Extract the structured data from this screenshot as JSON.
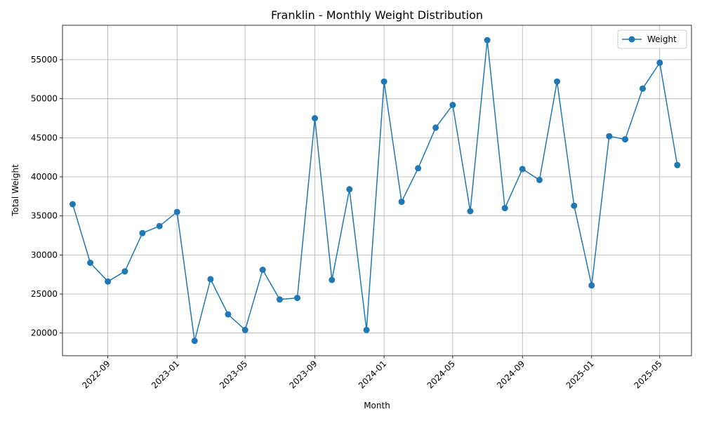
{
  "chart_data": {
    "type": "line",
    "title": "Franklin - Monthly Weight Distribution",
    "xlabel": "Month",
    "ylabel": "Total Weight",
    "x": [
      "2022-07",
      "2022-08",
      "2022-09",
      "2022-10",
      "2022-11",
      "2022-12",
      "2023-01",
      "2023-02",
      "2023-03",
      "2023-04",
      "2023-05",
      "2023-06",
      "2023-07",
      "2023-08",
      "2023-09",
      "2023-10",
      "2023-11",
      "2023-12",
      "2024-01",
      "2024-02",
      "2024-03",
      "2024-04",
      "2024-05",
      "2024-06",
      "2024-07",
      "2024-08",
      "2024-09",
      "2024-10",
      "2024-11",
      "2024-12",
      "2025-01",
      "2025-02",
      "2025-03",
      "2025-04",
      "2025-05",
      "2025-06"
    ],
    "series": [
      {
        "name": "Weight",
        "color": "#1f77b4",
        "marker": "circle",
        "values": [
          36500,
          29000,
          26600,
          27900,
          32800,
          33700,
          35500,
          19000,
          26900,
          22400,
          20400,
          28100,
          24300,
          24500,
          47500,
          26800,
          38400,
          20400,
          52200,
          36800,
          41100,
          46300,
          49200,
          35600,
          57500,
          36000,
          41000,
          39600,
          52200,
          36300,
          26100,
          45200,
          44800,
          51300,
          54600,
          41500
        ]
      }
    ],
    "xticks": [
      "2022-09",
      "2023-01",
      "2023-05",
      "2023-09",
      "2024-01",
      "2024-05",
      "2024-09",
      "2025-01",
      "2025-05"
    ],
    "yticks": [
      20000,
      25000,
      30000,
      35000,
      40000,
      45000,
      50000,
      55000
    ],
    "ylim": [
      17100,
      59400
    ],
    "xlim": [
      "2022-06-13",
      "2025-06-26"
    ],
    "grid": true,
    "legend": "upper right"
  }
}
